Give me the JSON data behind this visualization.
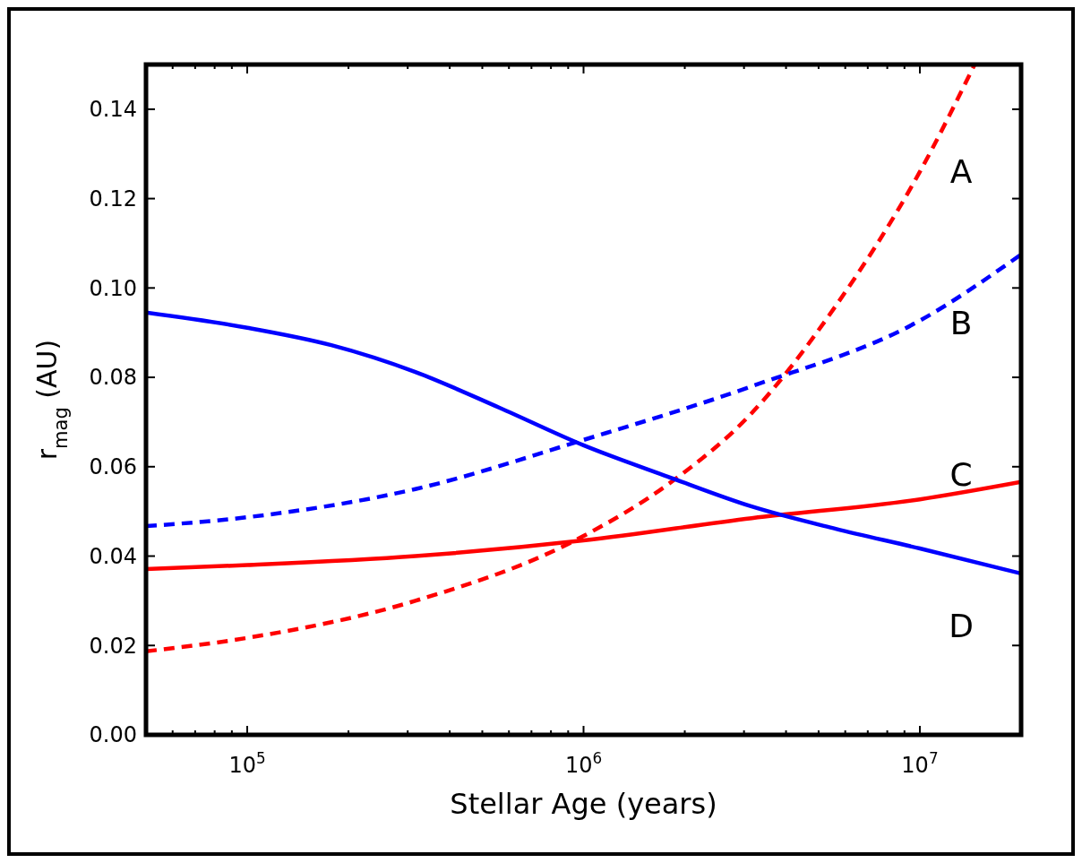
{
  "chart_data": {
    "type": "line",
    "xlabel": "Stellar Age (years)",
    "ylabel": "r$_{mag}$ (AU)",
    "log": "x",
    "xlim": [
      50000,
      20000000
    ],
    "xticks": [
      {
        "value": 60000,
        "label": null
      },
      {
        "value": 70000,
        "label": null
      },
      {
        "value": 80000,
        "label": null
      },
      {
        "value": 90000,
        "label": null
      },
      {
        "value": 100000,
        "label": "10$^{5}$"
      },
      {
        "value": 200000,
        "label": null
      },
      {
        "value": 300000,
        "label": null
      },
      {
        "value": 400000,
        "label": null
      },
      {
        "value": 500000,
        "label": null
      },
      {
        "value": 600000,
        "label": null
      },
      {
        "value": 700000,
        "label": null
      },
      {
        "value": 800000,
        "label": null
      },
      {
        "value": 900000,
        "label": null
      },
      {
        "value": 1000000,
        "label": "10$^{6}$"
      },
      {
        "value": 2000000,
        "label": null
      },
      {
        "value": 3000000,
        "label": null
      },
      {
        "value": 4000000,
        "label": null
      },
      {
        "value": 5000000,
        "label": null
      },
      {
        "value": 6000000,
        "label": null
      },
      {
        "value": 7000000,
        "label": null
      },
      {
        "value": 8000000,
        "label": null
      },
      {
        "value": 9000000,
        "label": null
      },
      {
        "value": 10000000,
        "label": "10$^{7}$"
      },
      {
        "value": 20000000,
        "label": null
      }
    ],
    "ylim": [
      0,
      0.15
    ],
    "yticks": [
      {
        "value": 0,
        "label": "0.00"
      },
      {
        "value": 0.02,
        "label": "0.02"
      },
      {
        "value": 0.04,
        "label": "0.04"
      },
      {
        "value": 0.06,
        "label": "0.06"
      },
      {
        "value": 0.08,
        "label": "0.08"
      },
      {
        "value": 0.1,
        "label": "0.10"
      },
      {
        "value": 0.12,
        "label": "0.12"
      },
      {
        "value": 0.14,
        "label": "0.14"
      }
    ],
    "grid": false,
    "series": [
      {
        "color": "#ff0000",
        "line_style": "dashed",
        "x": [
          50000,
          100000,
          316228,
          1000000,
          1778279,
          3162278,
          5623413,
          10000000,
          14550000
        ],
        "values": [
          0.0187,
          0.0217,
          0.03,
          0.0445,
          0.056,
          0.072,
          0.096,
          0.126,
          0.15
        ]
      },
      {
        "color": "#0000ff",
        "line_style": "dashed",
        "x": [
          50000,
          100000,
          316228,
          1000000,
          3162278,
          10000000,
          20000000
        ],
        "values": [
          0.0467,
          0.0487,
          0.055,
          0.066,
          0.078,
          0.0927,
          0.1075
        ]
      },
      {
        "color": "#ff0000",
        "line_style": "solid",
        "x": [
          50000,
          100000,
          316228,
          1000000,
          3162278,
          10000000,
          20000000
        ],
        "values": [
          0.0371,
          0.038,
          0.04,
          0.0435,
          0.0485,
          0.0527,
          0.0566
        ]
      },
      {
        "color": "#0000ff",
        "line_style": "solid",
        "x": [
          50000,
          100000,
          177828,
          316228,
          562341,
          1000000,
          1778279,
          3162278,
          5623413,
          10000000,
          20000000
        ],
        "values": [
          0.0945,
          0.0911,
          0.0872,
          0.0812,
          0.0732,
          0.0648,
          0.0578,
          0.0511,
          0.0461,
          0.0417,
          0.0361
        ]
      }
    ],
    "annotations": [
      "A",
      "B",
      "C",
      "D"
    ]
  }
}
